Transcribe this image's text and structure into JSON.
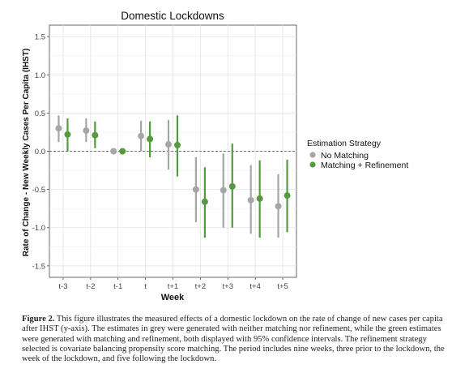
{
  "chart_data": {
    "type": "scatter",
    "title": "Domestic Lockdowns",
    "xlabel": "Week",
    "ylabel": "Rate of Change - New Weekly Cases Per Capita (IHST)",
    "categories": [
      "t-3",
      "t-2",
      "t-1",
      "t",
      "t+1",
      "t+2",
      "t+3",
      "t+4",
      "t+5"
    ],
    "ylim": [
      -1.65,
      1.65
    ],
    "yticks": [
      -1.5,
      -1.0,
      -0.5,
      0.0,
      0.5,
      1.0,
      1.5
    ],
    "ytick_labels": [
      "-1.5",
      "-1.0",
      "-0.5",
      "0.0",
      "0.5",
      "1.0",
      "1.5"
    ],
    "reference_line": 0,
    "grid": true,
    "legend": {
      "title": "Estimation Strategy",
      "placement": "right"
    },
    "series": [
      {
        "name": "No Matching",
        "color": "#a6a6a6",
        "estimates": [
          0.3,
          0.27,
          0.0,
          0.2,
          0.09,
          -0.5,
          -0.51,
          -0.64,
          -0.72
        ],
        "lower": [
          0.12,
          0.12,
          0.0,
          0.0,
          -0.24,
          -0.93,
          -1.0,
          -1.08,
          -1.13
        ],
        "upper": [
          0.47,
          0.43,
          0.0,
          0.4,
          0.41,
          -0.08,
          -0.03,
          -0.18,
          -0.3
        ]
      },
      {
        "name": "Matching + Refinement",
        "color": "#549a3e",
        "estimates": [
          0.22,
          0.21,
          0.0,
          0.16,
          0.08,
          -0.66,
          -0.46,
          -0.62,
          -0.58
        ],
        "lower": [
          0.0,
          0.04,
          0.0,
          -0.08,
          -0.33,
          -1.13,
          -1.0,
          -1.13,
          -1.06
        ],
        "upper": [
          0.43,
          0.39,
          0.0,
          0.39,
          0.47,
          -0.21,
          0.1,
          -0.12,
          -0.11
        ]
      }
    ]
  },
  "caption": {
    "label": "Figure 2.",
    "text": "This figure illustrates the measured effects of a domestic lockdown on the rate of change of new cases per capita after IHST (y-axis). The estimates in grey were generated with neither matching nor refinement, while the green estimates were generated with matching and refinement, both displayed with 95% confidence intervals. The refinement strategy selected is covariate balancing propensity score matching. The period includes nine weeks, three prior to the lockdown, the week of the lockdown, and five following the lockdown."
  }
}
